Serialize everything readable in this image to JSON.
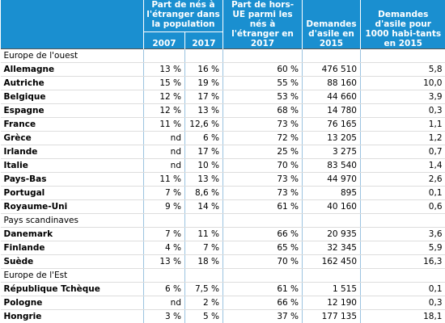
{
  "header": {
    "col_foreign": "Part de nés à l'étranger dans la population",
    "year_a": "2007",
    "year_b": "2017",
    "col_non_eu": "Part de hors-UE parmi les nés à l'étranger en 2017",
    "col_asylum": "Demandes d'asile en 2015",
    "col_asylum_rate": "Demandes d'asile pour 1000 habi-tants en 2015"
  },
  "sections": [
    {
      "title": "Europe de l'ouest",
      "rows": [
        [
          "Allemagne",
          "13 %",
          "16 %",
          "60 %",
          "476 510",
          "5,8"
        ],
        [
          "Autriche",
          "15 %",
          "19 %",
          "55 %",
          "88 160",
          "10,0"
        ],
        [
          "Belgique",
          "12 %",
          "17 %",
          "53 %",
          "44 660",
          "3,9"
        ],
        [
          "Espagne",
          "12 %",
          "13 %",
          "68 %",
          "14 780",
          "0,3"
        ],
        [
          "France",
          "11 %",
          "12,6 %",
          "73 %",
          "76 165",
          "1,1"
        ],
        [
          "Grèce",
          "nd",
          "6 %",
          "72 %",
          "13 205",
          "1,2"
        ],
        [
          "Irlande",
          "nd",
          "17 %",
          "25 %",
          "3 275",
          "0,7"
        ],
        [
          "Italie",
          "nd",
          "10 %",
          "70 %",
          "83 540",
          "1,4"
        ],
        [
          "Pays-Bas",
          "11 %",
          "13 %",
          "73 %",
          "44 970",
          "2,6"
        ],
        [
          "Portugal",
          "7 %",
          "8,6 %",
          "73 %",
          "895",
          "0,1"
        ],
        [
          "Royaume-Uni",
          "9 %",
          "14 %",
          "61 %",
          "40 160",
          "0,6"
        ]
      ]
    },
    {
      "title": "Pays scandinaves",
      "rows": [
        [
          "Danemark",
          "7 %",
          "11 %",
          "66 %",
          "20 935",
          "3,6"
        ],
        [
          "Finlande",
          "4 %",
          "7 %",
          "65 %",
          "32 345",
          "5,9"
        ],
        [
          "Suède",
          "13 %",
          "18 %",
          "70 %",
          "162 450",
          "16,3"
        ]
      ]
    },
    {
      "title": "Europe de l'Est",
      "rows": [
        [
          "République Tchèque",
          "6 %",
          "7,5 %",
          "61 %",
          "1 515",
          "0,1"
        ],
        [
          "Pologne",
          "nd",
          "2 %",
          "66 %",
          "12 190",
          "0,3"
        ],
        [
          "Hongrie",
          "3 %",
          "5 %",
          "37 %",
          "177 135",
          "18,1"
        ]
      ]
    }
  ]
}
